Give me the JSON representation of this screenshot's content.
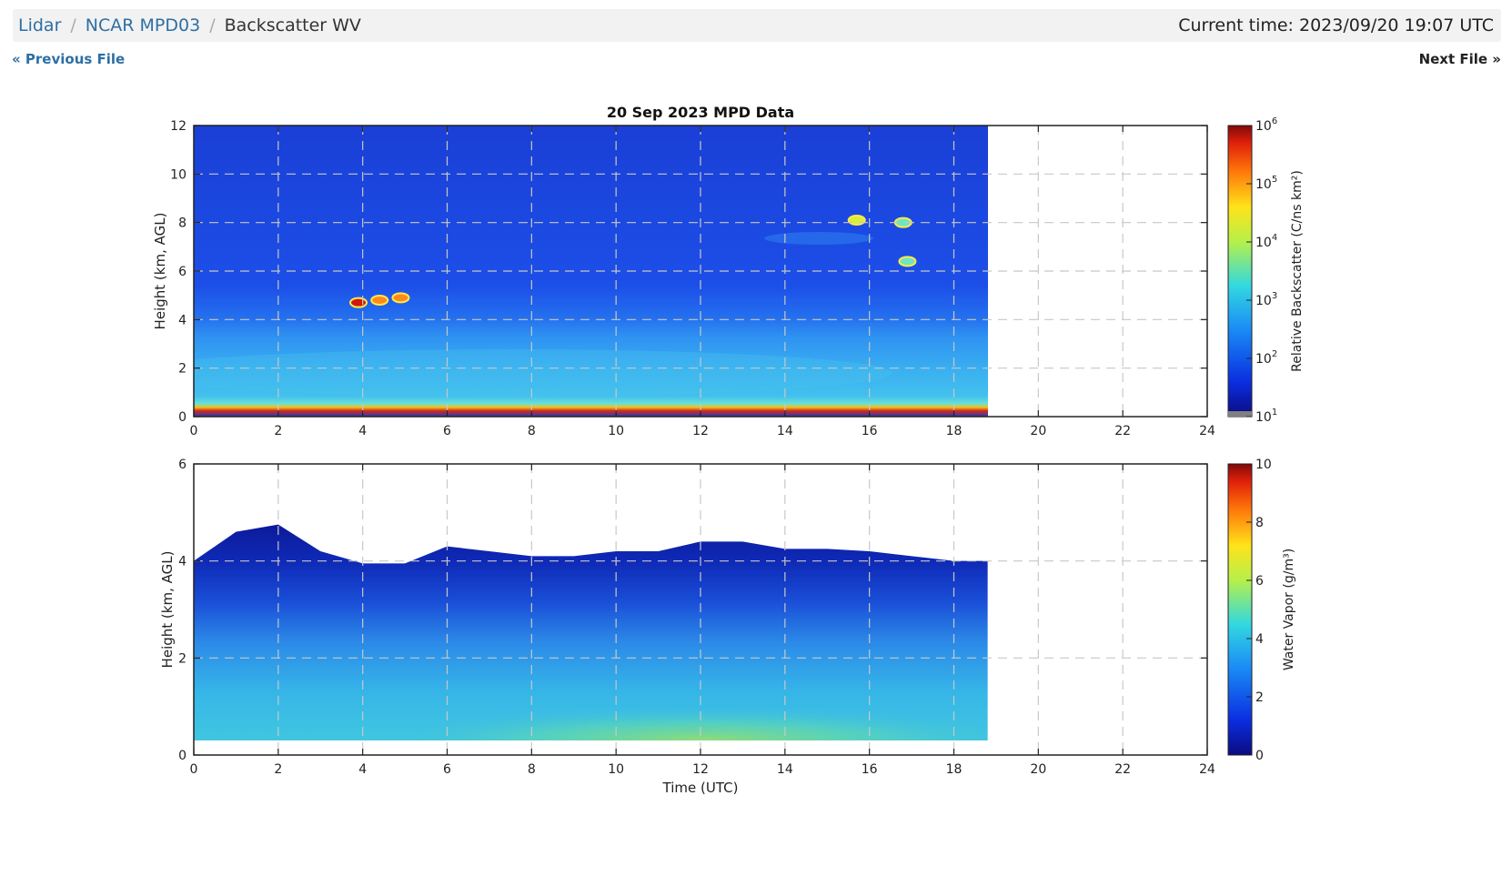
{
  "breadcrumb": {
    "items": [
      "Lidar",
      "NCAR MPD03"
    ],
    "current": "Backscatter WV"
  },
  "current_time": "Current time: 2023/09/20 19:07 UTC",
  "nav": {
    "previous": "« Previous File",
    "next": "Next File »"
  },
  "chart_data": [
    {
      "type": "heatmap",
      "title": "20 Sep 2023 MPD Data",
      "xlabel": "",
      "ylabel": "Height (km, AGL)",
      "xlim": [
        0,
        24
      ],
      "ylim": [
        0,
        12
      ],
      "x_ticks": [
        0,
        2,
        4,
        6,
        8,
        10,
        12,
        14,
        16,
        18,
        20,
        22,
        24
      ],
      "y_ticks": [
        0,
        2,
        4,
        6,
        8,
        10,
        12
      ],
      "grid": true,
      "data_end_x": 18.8,
      "colorbar": {
        "label": "Relative Backscatter (C/ns km²)",
        "scale": "log",
        "range": [
          10,
          1000000
        ],
        "tick_labels": [
          "10",
          "10",
          "10",
          "10",
          "10",
          "10"
        ],
        "tick_exponents": [
          "1",
          "2",
          "3",
          "4",
          "5",
          "6"
        ]
      },
      "features": [
        {
          "x": 3.9,
          "y": 4.7,
          "level": 1000000
        },
        {
          "x": 4.4,
          "y": 4.8,
          "level": 300000
        },
        {
          "x": 4.9,
          "y": 4.9,
          "level": 200000
        },
        {
          "x": 15.7,
          "y": 8.1,
          "level": 20000
        },
        {
          "x": 16.8,
          "y": 8.0,
          "level": 10000
        },
        {
          "x": 16.9,
          "y": 6.4,
          "level": 5000
        }
      ]
    },
    {
      "type": "heatmap",
      "title": "",
      "xlabel": "Time (UTC)",
      "ylabel": "Height (km, AGL)",
      "xlim": [
        0,
        24
      ],
      "ylim": [
        0,
        6
      ],
      "x_ticks": [
        0,
        2,
        4,
        6,
        8,
        10,
        12,
        14,
        16,
        18,
        20,
        22,
        24
      ],
      "y_ticks": [
        0,
        2,
        4,
        6
      ],
      "grid": true,
      "data_end_x": 18.8,
      "colorbar": {
        "label": "Water Vapor (g/m³)",
        "scale": "linear",
        "range": [
          0,
          10
        ],
        "tick_labels": [
          "0",
          "2",
          "4",
          "6",
          "8",
          "10"
        ]
      },
      "data_top_km": [
        [
          0,
          4.0
        ],
        [
          1,
          4.6
        ],
        [
          2,
          4.75
        ],
        [
          3,
          4.2
        ],
        [
          4,
          3.95
        ],
        [
          5,
          3.95
        ],
        [
          6,
          4.3
        ],
        [
          7,
          4.2
        ],
        [
          8,
          4.1
        ],
        [
          9,
          4.1
        ],
        [
          10,
          4.2
        ],
        [
          11,
          4.2
        ],
        [
          12,
          4.4
        ],
        [
          13,
          4.4
        ],
        [
          14,
          4.25
        ],
        [
          15,
          4.25
        ],
        [
          16,
          4.2
        ],
        [
          17,
          4.1
        ],
        [
          18,
          4.0
        ],
        [
          18.8,
          4.0
        ]
      ]
    }
  ]
}
